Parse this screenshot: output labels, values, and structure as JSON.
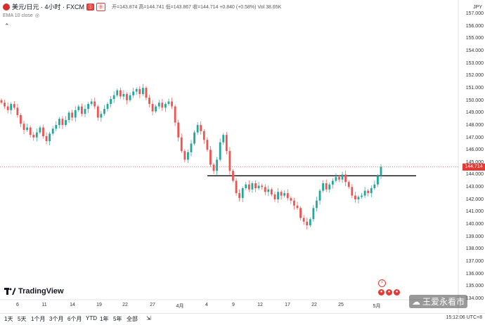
{
  "header": {
    "symbol": "美元/日元 · 4小时 · FXCM",
    "tag_sell": "Ⓢ",
    "tag_buy": "Ⓑ",
    "ohlc_text": "开=143.874 高=144.741 低=143.867 收=144.714 +0.840 (+0.58%) Vol 38.65K",
    "ema_label": "EMA 10 close",
    "currency": "JPY"
  },
  "y_axis": {
    "ticks": [
      "157.000",
      "156.000",
      "155.000",
      "154.000",
      "153.000",
      "152.000",
      "151.000",
      "150.000",
      "149.000",
      "148.000",
      "147.000",
      "146.000",
      "145.000",
      "144.000",
      "143.000",
      "142.000",
      "141.000",
      "140.000",
      "139.000",
      "138.000",
      "137.000",
      "136.000",
      "135.000",
      "134.000"
    ],
    "last_price": "144.714"
  },
  "x_axis": {
    "ticks": [
      "6",
      "11",
      "14",
      "19",
      "22",
      "27",
      "4月",
      "4",
      "9",
      "12",
      "17",
      "22",
      "25",
      "5月"
    ]
  },
  "timeframes": [
    "1天",
    "5天",
    "1个月",
    "3个月",
    "6个月",
    "YTD",
    "1年",
    "5年",
    "全部"
  ],
  "time_display": "15:12:06 UTC+8",
  "logo": "TradingView",
  "watermark": "王爱永看市",
  "colors": {
    "up": "#26a69a",
    "down": "#ef5350",
    "last_price": "#e53935"
  },
  "chart_data": {
    "type": "candlestick",
    "symbol": "美元/日元 · 4小时 · FXCM",
    "y_range": [
      133.5,
      157.5
    ],
    "x_ticks": [
      "6",
      "11",
      "14",
      "19",
      "22",
      "27",
      "4月",
      "4",
      "9",
      "12",
      "17",
      "22",
      "25",
      "5月"
    ],
    "series_close_trace": [
      149.9,
      149.6,
      149.3,
      149.8,
      149.5,
      148.9,
      148.2,
      147.7,
      147.9,
      147.3,
      147.1,
      147.5,
      147.9,
      147.2,
      146.8,
      147.4,
      147.8,
      148.1,
      148.6,
      148.1,
      148.5,
      149.1,
      148.7,
      149.3,
      149.6,
      149.0,
      149.4,
      149.8,
      150.0,
      149.6,
      148.7,
      149.0,
      149.4,
      149.8,
      150.2,
      150.5,
      150.9,
      150.4,
      150.6,
      150.1,
      150.5,
      150.8,
      151.0,
      150.6,
      151.1,
      150.3,
      149.8,
      149.2,
      149.6,
      149.9,
      149.5,
      149.8,
      150.0,
      149.6,
      148.3,
      147.1,
      146.0,
      145.3,
      145.9,
      146.6,
      147.5,
      148.1,
      147.6,
      146.9,
      146.1,
      144.9,
      144.4,
      145.3,
      146.7,
      147.3,
      146.0,
      144.4,
      143.6,
      142.6,
      142.2,
      143.0,
      143.3,
      142.9,
      143.4,
      143.0,
      143.2,
      143.1,
      142.7,
      142.9,
      142.5,
      142.1,
      142.7,
      142.4,
      142.6,
      142.2,
      142.0,
      141.6,
      141.4,
      140.6,
      140.3,
      140.0,
      140.5,
      141.4,
      142.0,
      142.8,
      143.4,
      142.9,
      143.3,
      143.6,
      143.9,
      143.7,
      144.1,
      143.5,
      143.1,
      142.4,
      142.1,
      142.3,
      142.4,
      142.8,
      142.6,
      143.0,
      143.3,
      144.0,
      144.714
    ],
    "horizontal_line": 144.0,
    "last_price": 144.714
  }
}
